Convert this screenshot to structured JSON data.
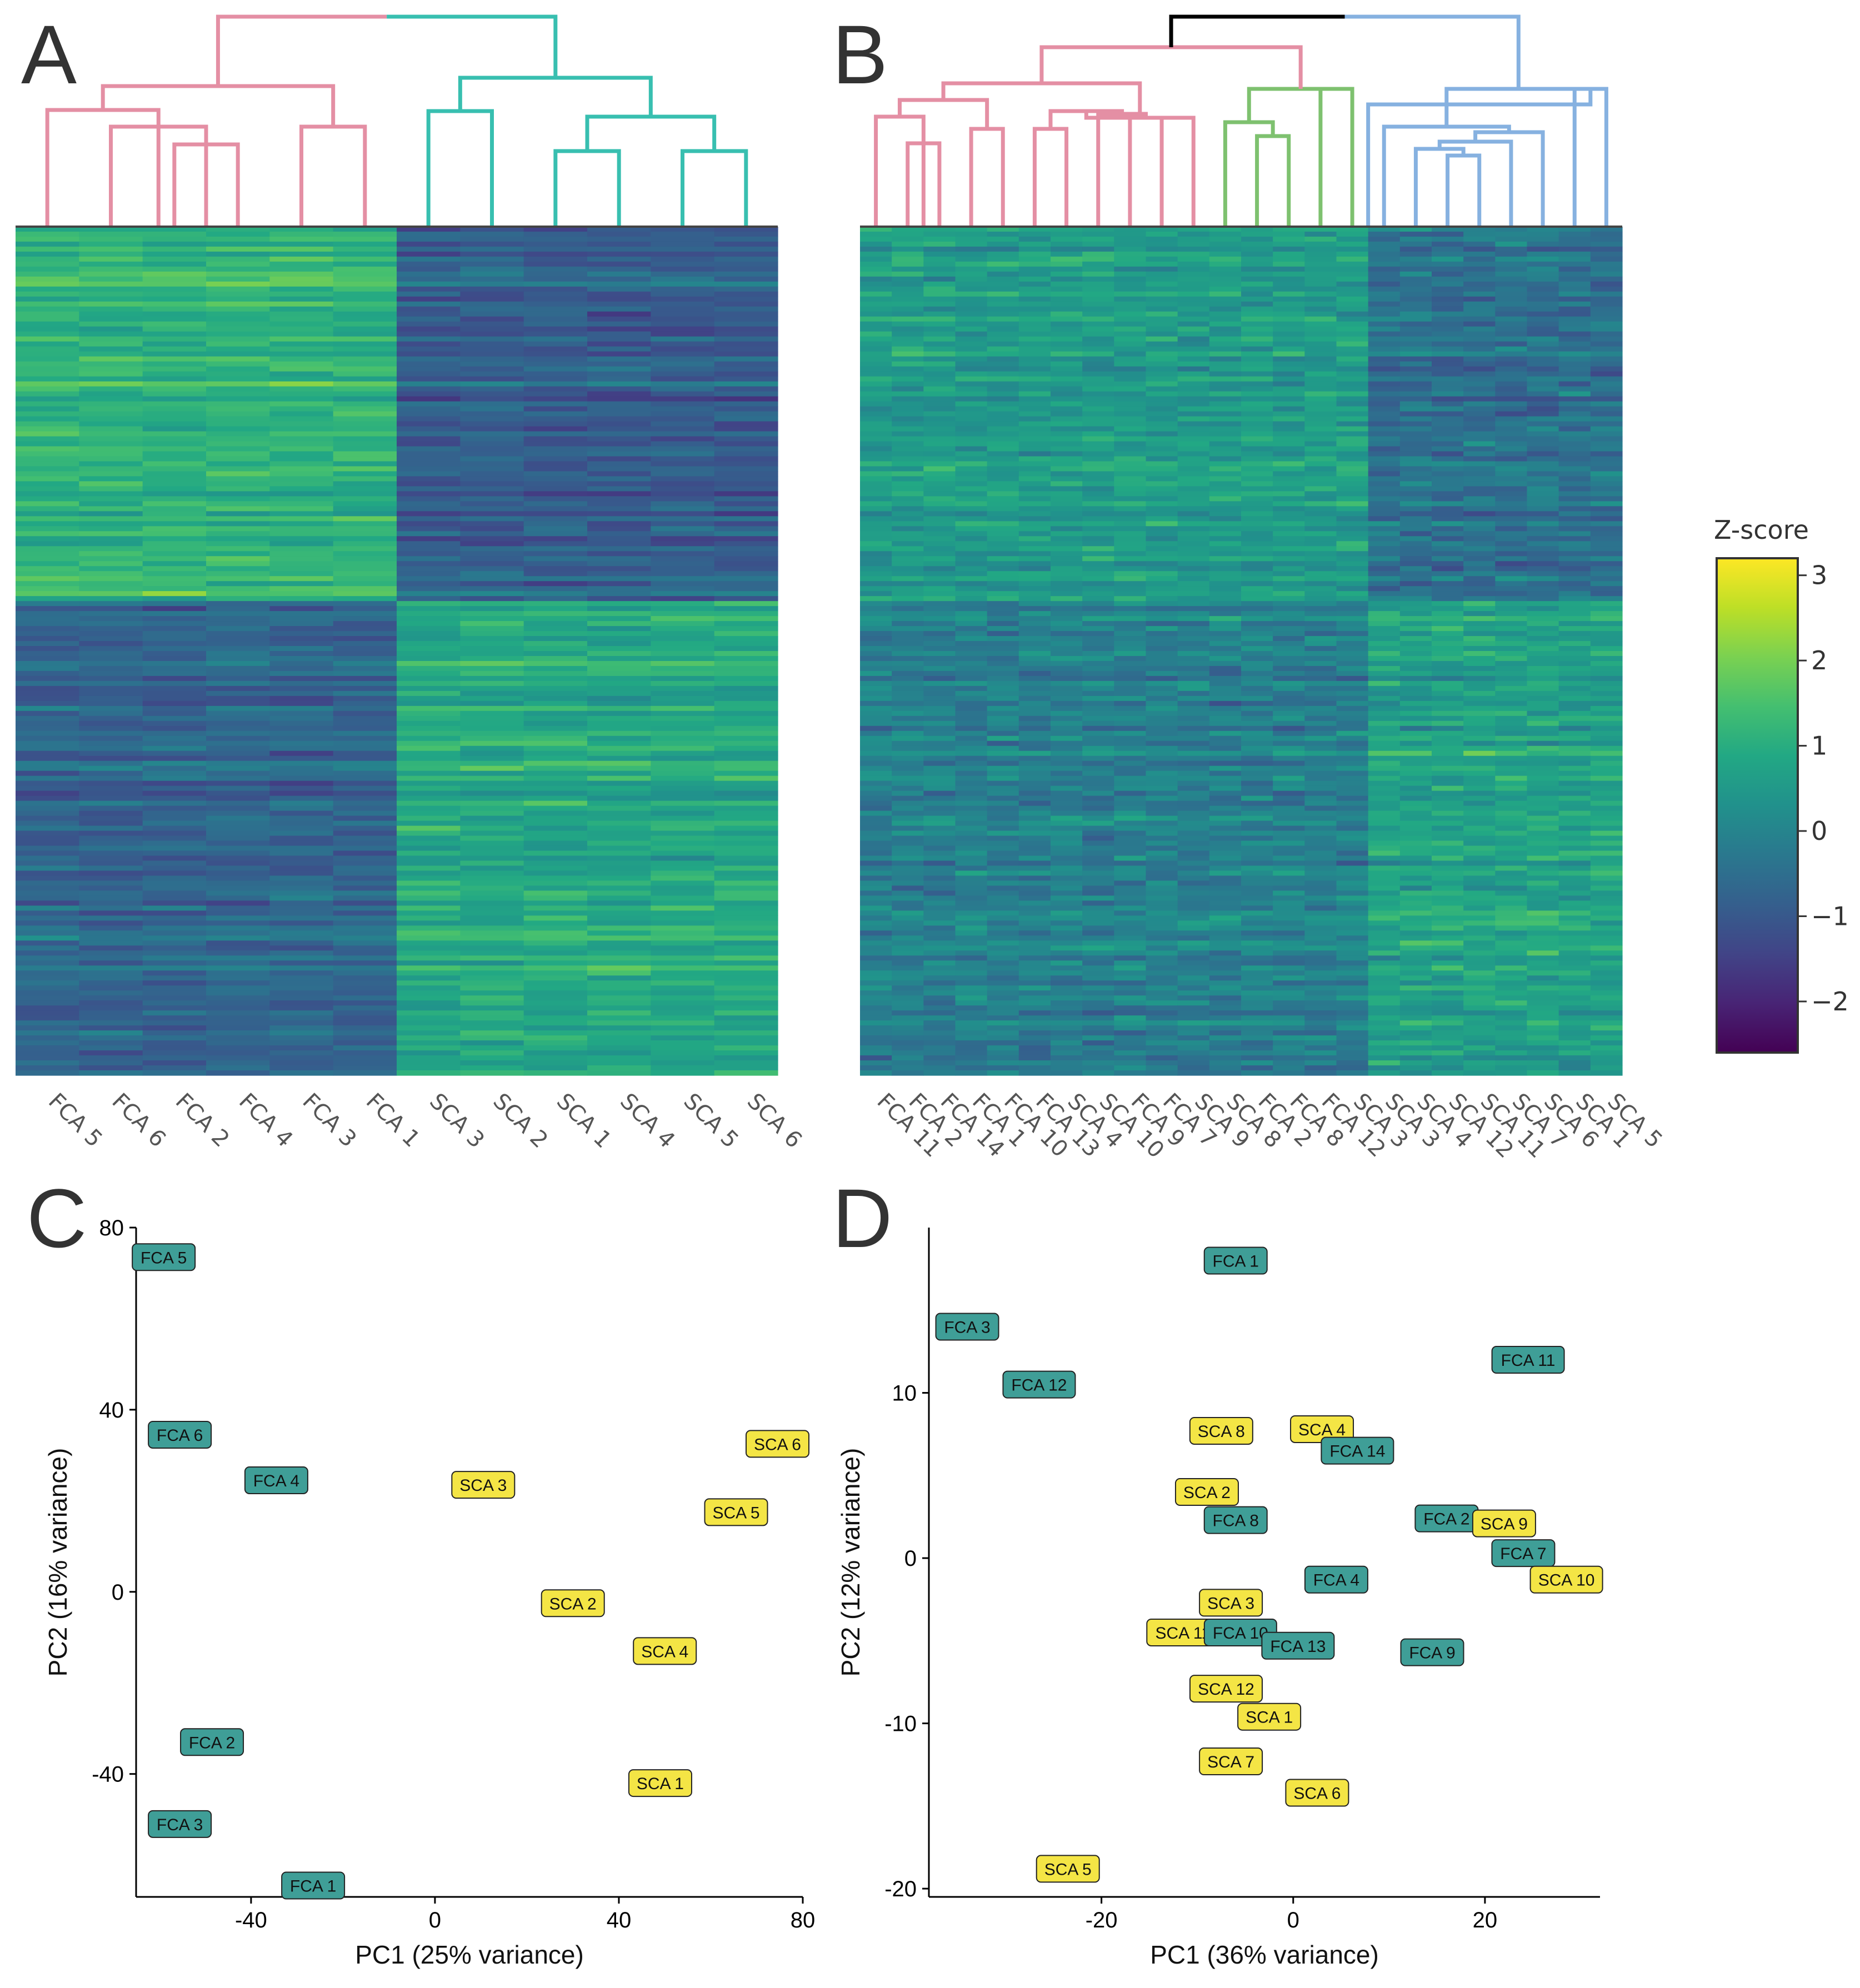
{
  "panels": [
    {
      "letter": "A"
    },
    {
      "letter": "B"
    },
    {
      "letter": "C"
    },
    {
      "letter": "D"
    }
  ],
  "colors": {
    "cluster_pink": "#e48fa4",
    "cluster_teal": "#38bfb0",
    "cluster_green": "#7ec16f",
    "cluster_blue": "#86b1e0",
    "root_black": "#000000",
    "fca_label_bg": "#3f9e97",
    "sca_label_bg": "#f4e545"
  },
  "chart_data": [
    {
      "type": "heatmap",
      "panel": "A",
      "columns": [
        "FCA 5",
        "FCA 6",
        "FCA 2",
        "FCA 4",
        "FCA 3",
        "FCA 1",
        "SCA 3",
        "SCA 2",
        "SCA 1",
        "SCA 4",
        "SCA 5",
        "SCA 6"
      ],
      "column_groups": [
        "FCA",
        "FCA",
        "FCA",
        "FCA",
        "FCA",
        "FCA",
        "SCA",
        "SCA",
        "SCA",
        "SCA",
        "SCA",
        "SCA"
      ],
      "dendrogram_clusters": [
        "pink",
        "pink",
        "pink",
        "pink",
        "pink",
        "pink",
        "teal",
        "teal",
        "teal",
        "teal",
        "teal",
        "teal"
      ],
      "colormap": "viridis",
      "value_range": [
        -2.5,
        3.2
      ],
      "pattern": "upper half: FCA high (green/yellow), SCA low (blue); lower half: FCA low (blue), SCA high (green/yellow)"
    },
    {
      "type": "heatmap",
      "panel": "B",
      "columns": [
        "FCA 11",
        "FCA 2",
        "FCA 14",
        "FCA 1",
        "FCA 10",
        "FCA 13",
        "SCA 4",
        "SCA 10",
        "FCA 9",
        "FCA 7",
        "SCA 9",
        "SCA 8",
        "FCA 2",
        "FCA 8",
        "FCA 12",
        "SCA 3",
        "SCA 3",
        "SCA 4",
        "SCA 12",
        "SCA 11",
        "SCA 7",
        "SCA 6",
        "SCA 1",
        "SCA 5"
      ],
      "dendrogram_clusters": [
        "pink",
        "pink",
        "pink",
        "pink",
        "pink",
        "pink",
        "pink",
        "pink",
        "pink",
        "pink",
        "pink",
        "green",
        "green",
        "green",
        "green",
        "green",
        "blue",
        "blue",
        "blue",
        "blue",
        "blue",
        "blue",
        "blue",
        "blue"
      ],
      "colormap": "viridis",
      "value_range": [
        -2.5,
        3.2
      ],
      "pattern": "upper rows: left columns higher; lower rows: right columns higher; weaker contrast than A"
    },
    {
      "type": "scatter",
      "panel": "C",
      "xlabel": "PC1 (25% variance)",
      "ylabel": "PC2 (16% variance)",
      "xlim": [
        -65,
        80
      ],
      "ylim": [
        -67,
        80
      ],
      "xticks": [
        -40,
        0,
        40,
        80
      ],
      "yticks": [
        -40,
        0,
        40,
        80
      ],
      "points": [
        {
          "label": "FCA 5",
          "x": -59,
          "y": 73.5,
          "group": "FCA"
        },
        {
          "label": "FCA 6",
          "x": -55.5,
          "y": 34.5,
          "group": "FCA"
        },
        {
          "label": "FCA 4",
          "x": -34.5,
          "y": 24.5,
          "group": "FCA"
        },
        {
          "label": "FCA 2",
          "x": -48.5,
          "y": -33,
          "group": "FCA"
        },
        {
          "label": "FCA 3",
          "x": -55.5,
          "y": -51,
          "group": "FCA"
        },
        {
          "label": "FCA 1",
          "x": -26.5,
          "y": -64.5,
          "group": "FCA"
        },
        {
          "label": "SCA 3",
          "x": 10.5,
          "y": 23.5,
          "group": "SCA"
        },
        {
          "label": "SCA 6",
          "x": 74.5,
          "y": 32.5,
          "group": "SCA"
        },
        {
          "label": "SCA 5",
          "x": 65.5,
          "y": 17.5,
          "group": "SCA"
        },
        {
          "label": "SCA 2",
          "x": 30,
          "y": -2.5,
          "group": "SCA"
        },
        {
          "label": "SCA 4",
          "x": 50,
          "y": -13,
          "group": "SCA"
        },
        {
          "label": "SCA 1",
          "x": 49,
          "y": -42,
          "group": "SCA"
        }
      ]
    },
    {
      "type": "scatter",
      "panel": "D",
      "xlabel": "PC1 (36% variance)",
      "ylabel": "PC2 (12% variance)",
      "xlim": [
        -38,
        32
      ],
      "ylim": [
        -20.5,
        20
      ],
      "xticks": [
        -20,
        0,
        20
      ],
      "yticks": [
        -20,
        -10,
        0,
        10
      ],
      "points": [
        {
          "label": "FCA 1",
          "x": -6,
          "y": 18,
          "group": "FCA"
        },
        {
          "label": "FCA 3",
          "x": -34,
          "y": 14,
          "group": "FCA"
        },
        {
          "label": "FCA 11",
          "x": 24.5,
          "y": 12,
          "group": "FCA"
        },
        {
          "label": "FCA 12",
          "x": -26.5,
          "y": 10.5,
          "group": "FCA"
        },
        {
          "label": "SCA 8",
          "x": -7.5,
          "y": 7.7,
          "group": "SCA"
        },
        {
          "label": "SCA 4",
          "x": 3,
          "y": 7.8,
          "group": "SCA"
        },
        {
          "label": "FCA 14",
          "x": 6.7,
          "y": 6.5,
          "group": "FCA"
        },
        {
          "label": "SCA 2",
          "x": -9,
          "y": 4,
          "group": "SCA"
        },
        {
          "label": "FCA 8",
          "x": -6,
          "y": 2.3,
          "group": "FCA"
        },
        {
          "label": "FCA 2",
          "x": 16,
          "y": 2.4,
          "group": "FCA"
        },
        {
          "label": "SCA 9",
          "x": 22,
          "y": 2.1,
          "group": "SCA"
        },
        {
          "label": "FCA 7",
          "x": 24,
          "y": 0.3,
          "group": "FCA"
        },
        {
          "label": "SCA 10",
          "x": 28.5,
          "y": -1.3,
          "group": "SCA"
        },
        {
          "label": "FCA 4",
          "x": 4.5,
          "y": -1.3,
          "group": "FCA"
        },
        {
          "label": "SCA 3",
          "x": -6.5,
          "y": -2.7,
          "group": "SCA"
        },
        {
          "label": "SCA 11",
          "x": -11.5,
          "y": -4.5,
          "group": "SCA"
        },
        {
          "label": "FCA 10",
          "x": -5.5,
          "y": -4.5,
          "group": "FCA"
        },
        {
          "label": "FCA 13",
          "x": 0.5,
          "y": -5.3,
          "group": "FCA"
        },
        {
          "label": "FCA 9",
          "x": 14.5,
          "y": -5.7,
          "group": "FCA"
        },
        {
          "label": "SCA 12",
          "x": -7,
          "y": -7.9,
          "group": "SCA"
        },
        {
          "label": "SCA 1",
          "x": -2.5,
          "y": -9.6,
          "group": "SCA"
        },
        {
          "label": "SCA 7",
          "x": -6.5,
          "y": -12.3,
          "group": "SCA"
        },
        {
          "label": "SCA 6",
          "x": 2.5,
          "y": -14.2,
          "group": "SCA"
        },
        {
          "label": "SCA 5",
          "x": -23.5,
          "y": -18.8,
          "group": "SCA"
        }
      ]
    }
  ],
  "legend": {
    "title": "Z-score",
    "ticks": [
      "3",
      "2",
      "1",
      "0",
      "−1",
      "−2"
    ],
    "tick_values": [
      3,
      2,
      1,
      0,
      -1,
      -2
    ],
    "range": [
      -2.6,
      3.2
    ]
  }
}
